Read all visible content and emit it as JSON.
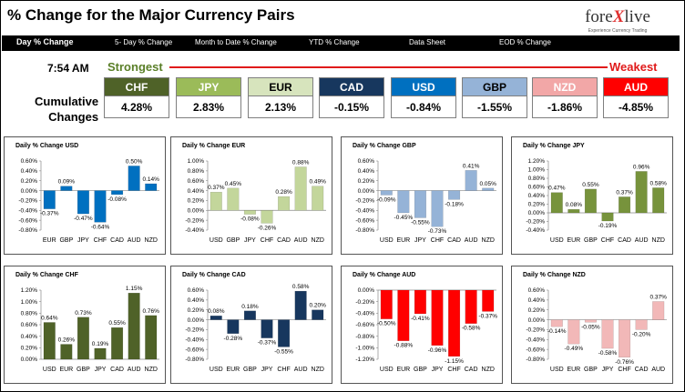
{
  "header": {
    "title": "% Change for the Major Currency Pairs",
    "logo_pre": "fore",
    "logo_x": "X",
    "logo_post": "live",
    "logo_tagline": "Experience Currency Trading"
  },
  "nav": [
    {
      "label": "Day % Change",
      "active": true
    },
    {
      "label": "5- Day % Change",
      "active": false
    },
    {
      "label": "Month to Date % Change",
      "active": false
    },
    {
      "label": "YTD % Change",
      "active": false
    },
    {
      "label": "Data Sheet",
      "active": false
    },
    {
      "label": "EOD % Change",
      "active": false
    }
  ],
  "summary": {
    "time": "7:54 AM",
    "strongest_label": "Strongest",
    "weakest_label": "Weakest",
    "cum_label_1": "Cumulative",
    "cum_label_2": "Changes",
    "tiles": [
      {
        "currency": "CHF",
        "value": "4.28%",
        "color": "#4f6228",
        "text_color": "#ffffff"
      },
      {
        "currency": "JPY",
        "value": "2.83%",
        "color": "#9bbb59",
        "text_color": "#ffffff"
      },
      {
        "currency": "EUR",
        "value": "2.13%",
        "color": "#d7e4bd",
        "text_color": "#000000"
      },
      {
        "currency": "CAD",
        "value": "-0.15%",
        "color": "#17375e",
        "text_color": "#ffffff"
      },
      {
        "currency": "USD",
        "value": "-0.84%",
        "color": "#0070c0",
        "text_color": "#ffffff"
      },
      {
        "currency": "GBP",
        "value": "-1.55%",
        "color": "#95b3d7",
        "text_color": "#000000"
      },
      {
        "currency": "NZD",
        "value": "-1.86%",
        "color": "#f2a7a7",
        "text_color": "#ffffff"
      },
      {
        "currency": "AUD",
        "value": "-4.85%",
        "color": "#ff0000",
        "text_color": "#ffffff"
      }
    ]
  },
  "chart_data": [
    {
      "type": "bar",
      "title": "Daily % Change USD",
      "color": "#0070c0",
      "categories": [
        "EUR",
        "GBP",
        "JPY",
        "CHF",
        "CAD",
        "AUD",
        "NZD"
      ],
      "values": [
        -0.37,
        0.09,
        -0.47,
        -0.64,
        -0.08,
        0.5,
        0.14
      ],
      "labels": [
        "-0.37%",
        "0.09%",
        "-0.47%",
        "-0.64%",
        "-0.08%",
        "0.50%",
        "0.14%"
      ],
      "yticks": [
        "0.60%",
        "0.40%",
        "0.20%",
        "0.00%",
        "-0.20%",
        "-0.40%",
        "-0.60%",
        "-0.80%"
      ],
      "ylim": [
        -0.8,
        0.6
      ]
    },
    {
      "type": "bar",
      "title": "Daily % Change EUR",
      "color": "#c3d69b",
      "categories": [
        "USD",
        "GBP",
        "JPY",
        "CHF",
        "CAD",
        "AUD",
        "NZD"
      ],
      "values": [
        0.37,
        0.45,
        -0.08,
        -0.26,
        0.28,
        0.88,
        0.49
      ],
      "labels": [
        "0.37%",
        "0.45%",
        "-0.08%",
        "-0.26%",
        "0.28%",
        "0.88%",
        "0.49%"
      ],
      "yticks": [
        "1.00%",
        "0.80%",
        "0.60%",
        "0.40%",
        "0.20%",
        "0.00%",
        "-0.20%",
        "-0.40%"
      ],
      "ylim": [
        -0.4,
        1.0
      ]
    },
    {
      "type": "bar",
      "title": "Daily % Change GBP",
      "color": "#95b3d7",
      "categories": [
        "USD",
        "EUR",
        "JPY",
        "CHF",
        "CAD",
        "AUD",
        "NZD"
      ],
      "values": [
        -0.09,
        -0.45,
        -0.55,
        -0.73,
        -0.18,
        0.41,
        0.05
      ],
      "labels": [
        "-0.09%",
        "-0.45%",
        "-0.55%",
        "-0.73%",
        "-0.18%",
        "0.41%",
        "0.05%"
      ],
      "yticks": [
        "0.60%",
        "0.40%",
        "0.20%",
        "0.00%",
        "-0.20%",
        "-0.40%",
        "-0.60%",
        "-0.80%"
      ],
      "ylim": [
        -0.8,
        0.6
      ]
    },
    {
      "type": "bar",
      "title": "Daily % Change JPY",
      "color": "#77933c",
      "categories": [
        "USD",
        "EUR",
        "GBP",
        "CHF",
        "CAD",
        "AUD",
        "NZD"
      ],
      "values": [
        0.47,
        0.08,
        0.55,
        -0.19,
        0.37,
        0.96,
        0.58
      ],
      "labels": [
        "0.47%",
        "0.08%",
        "0.55%",
        "-0.19%",
        "0.37%",
        "0.96%",
        "0.58%"
      ],
      "yticks": [
        "1.20%",
        "1.00%",
        "0.80%",
        "0.60%",
        "0.40%",
        "0.20%",
        "0.00%",
        "-0.20%",
        "-0.40%"
      ],
      "ylim": [
        -0.4,
        1.2
      ]
    },
    {
      "type": "bar",
      "title": "Daily % Change CHF",
      "color": "#4f6228",
      "categories": [
        "USD",
        "EUR",
        "GBP",
        "JPY",
        "CAD",
        "AUD",
        "NZD"
      ],
      "values": [
        0.64,
        0.26,
        0.73,
        0.19,
        0.55,
        1.15,
        0.76
      ],
      "labels": [
        "0.64%",
        "0.26%",
        "0.73%",
        "0.19%",
        "0.55%",
        "1.15%",
        "0.76%"
      ],
      "yticks": [
        "1.20%",
        "1.00%",
        "0.80%",
        "0.60%",
        "0.40%",
        "0.20%",
        "0.00%"
      ],
      "ylim": [
        0,
        1.2
      ]
    },
    {
      "type": "bar",
      "title": "Daily % Change CAD",
      "color": "#17375e",
      "categories": [
        "USD",
        "EUR",
        "GBP",
        "JPY",
        "CHF",
        "AUD",
        "NZD"
      ],
      "values": [
        0.08,
        -0.28,
        0.18,
        -0.37,
        -0.55,
        0.58,
        0.2
      ],
      "labels": [
        "0.08%",
        "-0.28%",
        "0.18%",
        "-0.37%",
        "-0.55%",
        "0.58%",
        "0.20%"
      ],
      "yticks": [
        "0.60%",
        "0.40%",
        "0.20%",
        "0.00%",
        "-0.20%",
        "-0.40%",
        "-0.60%",
        "-0.80%"
      ],
      "ylim": [
        -0.8,
        0.6
      ]
    },
    {
      "type": "bar",
      "title": "Daily % Change AUD",
      "color": "#ff0000",
      "categories": [
        "USD",
        "EUR",
        "GBP",
        "JPY",
        "CHF",
        "CAD",
        "NZD"
      ],
      "values": [
        -0.5,
        -0.88,
        -0.41,
        -0.96,
        -1.15,
        -0.58,
        -0.37
      ],
      "labels": [
        "-0.50%",
        "-0.88%",
        "-0.41%",
        "-0.96%",
        "-1.15%",
        "-0.58%",
        "-0.37%"
      ],
      "yticks": [
        "0.00%",
        "-0.20%",
        "-0.40%",
        "-0.60%",
        "-0.80%",
        "-1.00%",
        "-1.20%"
      ],
      "ylim": [
        -1.2,
        0
      ]
    },
    {
      "type": "bar",
      "title": "Daily % Change NZD",
      "color": "#f2b8b8",
      "categories": [
        "USD",
        "EUR",
        "GBP",
        "JPY",
        "CHF",
        "CAD",
        "AUD"
      ],
      "values": [
        -0.14,
        -0.49,
        -0.05,
        -0.58,
        -0.76,
        -0.2,
        0.37
      ],
      "labels": [
        "-0.14%",
        "-0.49%",
        "-0.05%",
        "-0.58%",
        "-0.76%",
        "-0.20%",
        "0.37%"
      ],
      "yticks": [
        "0.60%",
        "0.40%",
        "0.20%",
        "0.00%",
        "-0.20%",
        "-0.40%",
        "-0.60%",
        "-0.80%"
      ],
      "ylim": [
        -0.8,
        0.6
      ]
    }
  ]
}
